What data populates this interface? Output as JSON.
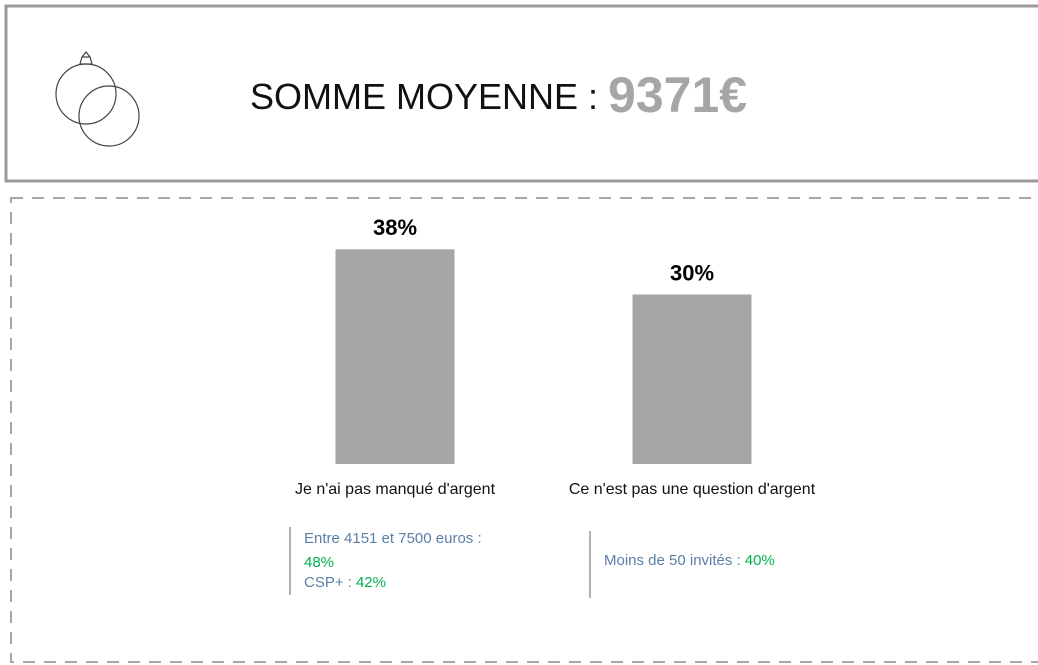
{
  "header": {
    "label": "SOMME MOYENNE :",
    "amount": "9371€"
  },
  "chart_data": {
    "type": "bar",
    "categories": [
      "Je n'ai pas manqué d'argent",
      "Ce n'est pas une question d'argent"
    ],
    "values": [
      38,
      30
    ],
    "value_labels": [
      "38%",
      "30%"
    ],
    "color": "#a6a6a6"
  },
  "notes": [
    {
      "items": [
        {
          "label": "Entre 4151 et 7500 euros :",
          "value": "48%"
        },
        {
          "label": "CSP+ :",
          "value": "42%"
        }
      ]
    },
    {
      "items": [
        {
          "label": "Moins de 50 invités :",
          "value": "40%"
        }
      ]
    }
  ]
}
